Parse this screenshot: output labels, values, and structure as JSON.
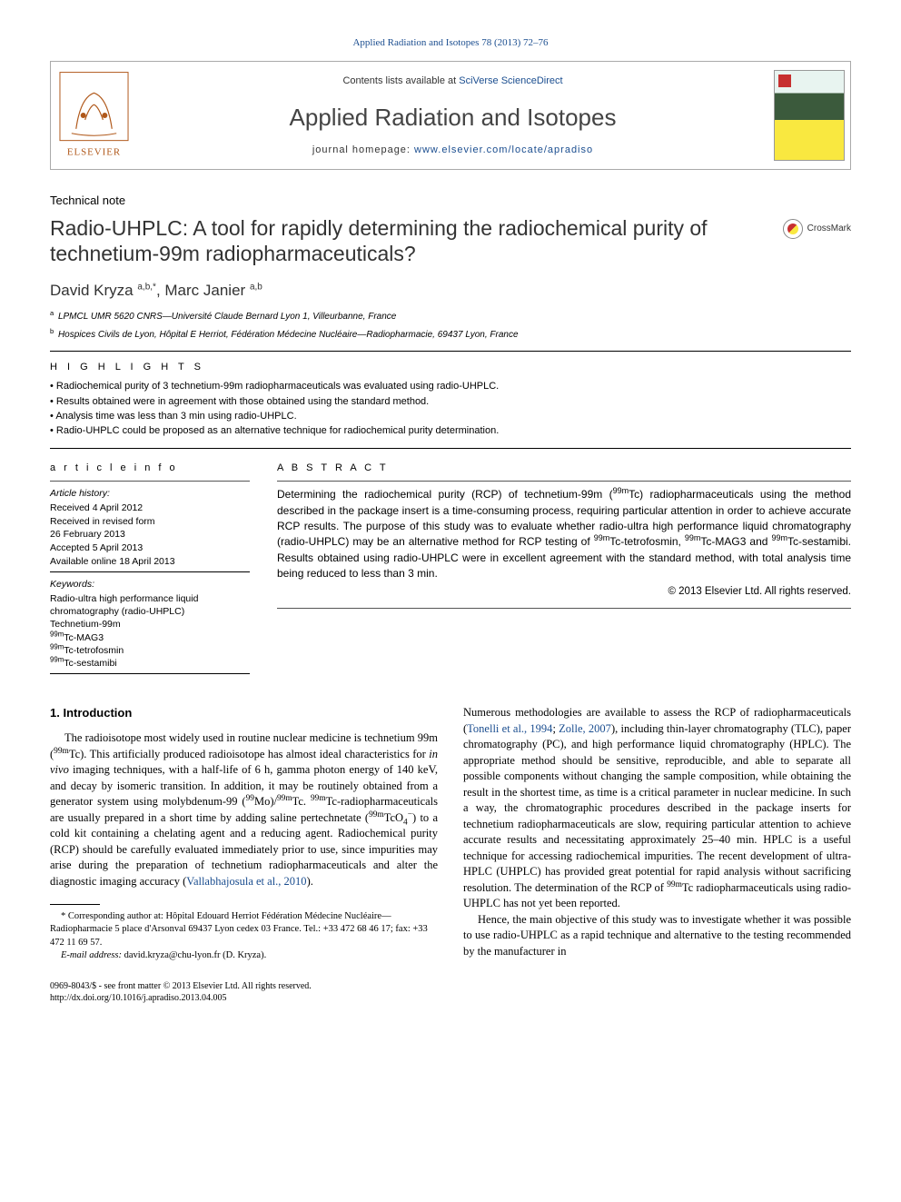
{
  "top_link": "Applied Radiation and Isotopes 78 (2013) 72–76",
  "header": {
    "contents_prefix": "Contents lists available at ",
    "contents_link": "SciVerse ScienceDirect",
    "journal_name": "Applied Radiation and Isotopes",
    "homepage_prefix": "journal homepage: ",
    "homepage_url": "www.elsevier.com/locate/apradiso",
    "elsevier_label": "ELSEVIER"
  },
  "article_type": "Technical note",
  "title": "Radio-UHPLC: A tool for rapidly determining the radiochemical purity of technetium-99m radiopharmaceuticals?",
  "crossmark_label": "CrossMark",
  "authors_html": "David Kryza <sup>a,b,*</sup>, Marc Janier <sup>a,b</sup>",
  "affiliations": [
    {
      "sup": "a",
      "text": "LPMCL UMR 5620 CNRS—Université Claude Bernard Lyon 1, Villeurbanne, France"
    },
    {
      "sup": "b",
      "text": "Hospices Civils de Lyon, Hôpital E Herriot, Fédération Médecine Nucléaire—Radiopharmacie, 69437 Lyon, France"
    }
  ],
  "highlights_label": "H I G H L I G H T S",
  "highlights": [
    "Radiochemical purity of 3 technetium-99m radiopharmaceuticals was evaluated using radio-UHPLC.",
    "Results obtained were in agreement with those obtained using the standard method.",
    "Analysis time was less than 3 min using radio-UHPLC.",
    "Radio-UHPLC could be proposed as an alternative technique for radiochemical purity determination."
  ],
  "article_info_label": "a r t i c l e   i n f o",
  "abstract_label": "A B S T R A C T",
  "history": {
    "heading": "Article history:",
    "received": "Received 4 April 2012",
    "revised": "Received in revised form",
    "revised_date": "26 February 2013",
    "accepted": "Accepted 5 April 2013",
    "online": "Available online 18 April 2013"
  },
  "keywords_heading": "Keywords:",
  "keywords": [
    "Radio-ultra high performance liquid chromatography (radio-UHPLC)",
    "Technetium-99m",
    "<sup>99m</sup>Tc-MAG3",
    "<sup>99m</sup>Tc-tetrofosmin",
    "<sup>99m</sup>Tc-sestamibi"
  ],
  "abstract_text": "Determining the radiochemical purity (RCP) of technetium-99m (<sup>99m</sup>Tc) radiopharmaceuticals using the method described in the package insert is a time-consuming process, requiring particular attention in order to achieve accurate RCP results. The purpose of this study was to evaluate whether radio-ultra high performance liquid chromatography (radio-UHPLC) may be an alternative method for RCP testing of <sup>99m</sup>Tc-tetrofosmin, <sup>99m</sup>Tc-MAG3 and <sup>99m</sup>Tc-sestamibi. Results obtained using radio-UHPLC were in excellent agreement with the standard method, with total analysis time being reduced to less than 3 min.",
  "copyright": "© 2013 Elsevier Ltd. All rights reserved.",
  "intro_heading": "1.  Introduction",
  "intro_col1": "The radioisotope most widely used in routine nuclear medicine is technetium 99m (<sup>99m</sup>Tc). This artificially produced radioisotope has almost ideal characteristics for <i>in vivo</i> imaging techniques, with a half-life of 6 h, gamma photon energy of 140 keV, and decay by isomeric transition. In addition, it may be routinely obtained from a generator system using molybdenum-99 (<sup>99</sup>Mo)/<sup>99m</sup>Tc. <sup>99m</sup>Tc-radiopharmaceuticals are usually prepared in a short time by adding saline pertechnetate (<sup>99m</sup>TcO<sub>4</sub><sup>−</sup>) to a cold kit containing a chelating agent and a reducing agent. Radiochemical purity (RCP) should be carefully evaluated immediately prior to use, since impurities may arise during the preparation of technetium radiopharmaceuticals and alter the diagnostic imaging accuracy (<span class=\"cite\">Vallabhajosula et al., 2010</span>).",
  "intro_col2_p1": "Numerous methodologies are available to assess the RCP of radiopharmaceuticals (<span class=\"cite\">Tonelli et al., 1994</span>; <span class=\"cite\">Zolle, 2007</span>), including thin-layer chromatography (TLC), paper chromatography (PC), and high performance liquid chromatography (HPLC). The appropriate method should be sensitive, reproducible, and able to separate all possible components without changing the sample composition, while obtaining the result in the shortest time, as time is a critical parameter in nuclear medicine. In such a way, the chromatographic procedures described in the package inserts for technetium radiopharmaceuticals are slow, requiring particular attention to achieve accurate results and necessitating approximately 25–40 min. HPLC is a useful technique for accessing radiochemical impurities. The recent development of ultra-HPLC (UHPLC) has provided great potential for rapid analysis without sacrificing resolution. The determination of the RCP of <sup>99m</sup>Tc radiopharmaceuticals using radio-UHPLC has not yet been reported.",
  "intro_col2_p2": "Hence, the main objective of this study was to investigate whether it was possible to use radio-UHPLC as a rapid technique and alternative to the testing recommended by the manufacturer in",
  "footnote_corr": "* Corresponding author at: Hôpital Edouard Herriot Fédération Médecine Nucléaire—Radiopharmacie 5 place d'Arsonval 69437 Lyon cedex 03 France. Tel.: +33 472 68 46 17; fax: +33 472 11 69 57.",
  "footnote_email_label": "E-mail address:",
  "footnote_email": "david.kryza@chu-lyon.fr (D. Kryza).",
  "footer_issn": "0969-8043/$ - see front matter © 2013 Elsevier Ltd. All rights reserved.",
  "footer_doi": "http://dx.doi.org/10.1016/j.apradiso.2013.04.005",
  "colors": {
    "link": "#1a4d8f",
    "text": "#000000",
    "border": "#aaaaaa"
  }
}
